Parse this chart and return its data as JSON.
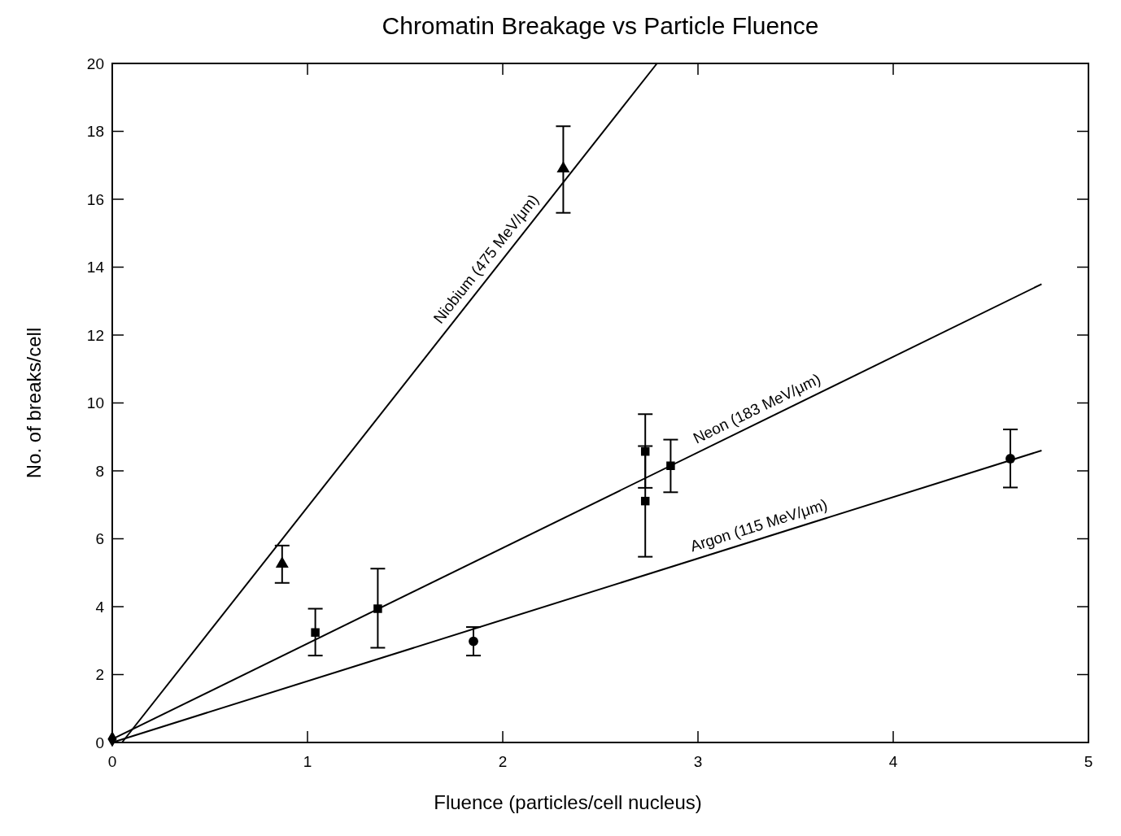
{
  "chart_data": {
    "type": "scatter",
    "title": "Chromatin Breakage vs Particle Fluence",
    "xlabel": "Fluence (particles/cell  nucleus)",
    "ylabel": "No. of breaks/cell",
    "xlim": [
      0,
      5
    ],
    "ylim": [
      0,
      20
    ],
    "xticks": [
      0,
      1,
      2,
      3,
      4,
      5
    ],
    "yticks": [
      0,
      2,
      4,
      6,
      8,
      10,
      12,
      14,
      16,
      18,
      20
    ],
    "grid": false,
    "series": [
      {
        "type": "line",
        "name": "Niobium (475 MeV/μm)",
        "color": "#000000",
        "x": [
          0.05,
          2.79
        ],
        "values": [
          0,
          20
        ]
      },
      {
        "type": "line",
        "name": "Neon (183 MeV/μm)",
        "color": "#000000",
        "x": [
          0,
          4.76
        ],
        "values": [
          0.1,
          13.5
        ]
      },
      {
        "type": "line",
        "name": "Argon (115 MeV/μm)",
        "color": "#000000",
        "x": [
          0,
          4.76
        ],
        "values": [
          0,
          8.6
        ]
      },
      {
        "marker": "triangle",
        "color": "#000000",
        "x": [
          0.87,
          2.31
        ],
        "values": [
          5.26,
          16.9
        ],
        "errors": [
          [
            4.7,
            5.8
          ],
          [
            15.6,
            18.15
          ]
        ]
      },
      {
        "marker": "square",
        "color": "#000000",
        "x": [
          1.04,
          1.36,
          2.73,
          2.73,
          2.86
        ],
        "values": [
          3.24,
          3.94,
          8.57,
          7.11,
          8.15
        ],
        "errors": [
          [
            2.56,
            3.94
          ],
          [
            2.79,
            5.12
          ],
          [
            7.5,
            9.67
          ],
          [
            5.47,
            8.73
          ],
          [
            7.37,
            8.92
          ]
        ]
      },
      {
        "marker": "circle",
        "color": "#000000",
        "x": [
          1.85,
          4.6
        ],
        "values": [
          2.98,
          8.36
        ],
        "errors": [
          [
            2.56,
            3.4
          ],
          [
            7.51,
            9.22
          ]
        ]
      },
      {
        "marker": "diamond",
        "color": "#000000",
        "x": [
          0
        ],
        "values": [
          0.1
        ]
      }
    ]
  }
}
